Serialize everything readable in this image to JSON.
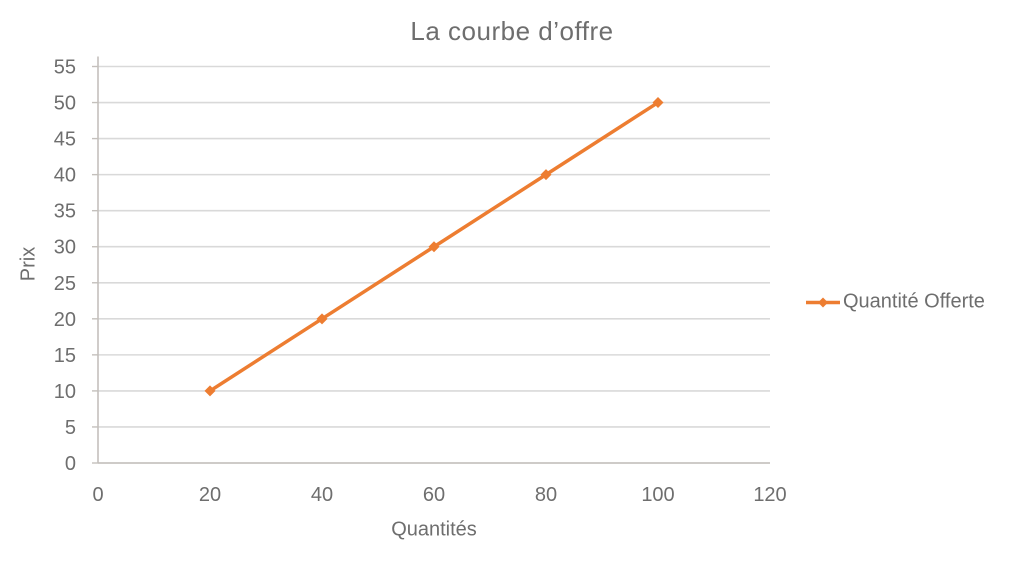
{
  "chart_data": {
    "type": "line",
    "title": "La courbe d’offre",
    "xlabel": "Quantités",
    "ylabel": "Prix",
    "xlim": [
      0,
      120
    ],
    "ylim": [
      0,
      55
    ],
    "x_ticks": [
      0,
      20,
      40,
      60,
      80,
      100,
      120
    ],
    "y_ticks": [
      0,
      5,
      10,
      15,
      20,
      25,
      30,
      35,
      40,
      45,
      50,
      55
    ],
    "grid": "horizontal",
    "legend_position": "right",
    "series": [
      {
        "name": "Quantité Offerte",
        "marker": "diamond",
        "color": "#ED7D31",
        "points": [
          {
            "x": 20,
            "y": 10
          },
          {
            "x": 40,
            "y": 20
          },
          {
            "x": 60,
            "y": 30
          },
          {
            "x": 80,
            "y": 40
          },
          {
            "x": 100,
            "y": 50
          }
        ]
      }
    ],
    "colors": {
      "series_line": "#ED7D31",
      "gridline": "#d9d9d9",
      "axis_line": "#c4c0bc",
      "text": "#6e6e6e"
    }
  },
  "legend": {
    "label": "Quantité Offerte"
  }
}
